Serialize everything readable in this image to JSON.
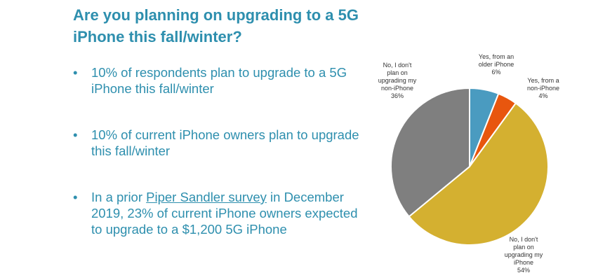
{
  "title": "Are you planning on upgrading to a 5G iPhone this fall/winter?",
  "bullets": [
    {
      "text": "10% of respondents plan to upgrade to a 5G iPhone this fall/winter"
    },
    {
      "text": "10% of current iPhone owners plan to upgrade this fall/winter"
    },
    {
      "prefix": "In a prior ",
      "link": "Piper Sandler survey",
      "suffix": " in December 2019, 23% of current iPhone owners expected to upgrade to a $1,200 5G iPhone"
    }
  ],
  "bullet_glyph": "•",
  "chart_data": {
    "type": "pie",
    "slices": [
      {
        "label_lines": [
          "Yes, from an",
          "older iPhone"
        ],
        "value_label": "6%",
        "value": 6,
        "color": "#4a9bc0"
      },
      {
        "label_lines": [
          "Yes, from a",
          "non-iPhone"
        ],
        "value_label": "4%",
        "value": 4,
        "color": "#e8560e"
      },
      {
        "label_lines": [
          "No, I don't",
          "plan on",
          "upgrading my",
          "iPhone"
        ],
        "value_label": "54%",
        "value": 54,
        "color": "#d4b030"
      },
      {
        "label_lines": [
          "No, I don't",
          "plan on",
          "upgrading my",
          "non-iPhone"
        ],
        "value_label": "36%",
        "value": 36,
        "color": "#7f7f7f"
      }
    ]
  }
}
